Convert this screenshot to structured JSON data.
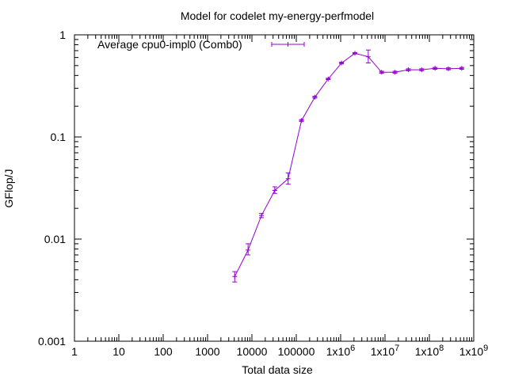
{
  "chart_data": {
    "type": "line",
    "title": "Model for codelet my-energy-perfmodel",
    "xlabel": "Total data size",
    "ylabel": "GFlop/J",
    "xscale": "log",
    "yscale": "log",
    "xlim": [
      1,
      1000000000
    ],
    "ylim": [
      0.001,
      1
    ],
    "xticks": [
      {
        "value": 1,
        "label": "1"
      },
      {
        "value": 10,
        "label": "10"
      },
      {
        "value": 100,
        "label": "100"
      },
      {
        "value": 1000,
        "label": "1000"
      },
      {
        "value": 10000,
        "label": "10000"
      },
      {
        "value": 100000,
        "label": "100000"
      },
      {
        "value": 1000000,
        "label": "1x10"
      },
      {
        "value": 10000000,
        "label": "1x10"
      },
      {
        "value": 100000000,
        "label": "1x10"
      },
      {
        "value": 1000000000,
        "label": "1x10"
      }
    ],
    "xtick_exponents": [
      "",
      "",
      "",
      "",
      "",
      "",
      "6",
      "7",
      "8",
      "9"
    ],
    "yticks": [
      {
        "value": 0.001,
        "label": "0.001"
      },
      {
        "value": 0.01,
        "label": "0.01"
      },
      {
        "value": 0.1,
        "label": "0.1"
      },
      {
        "value": 1,
        "label": "1"
      }
    ],
    "legend_position": "top-left",
    "grid": false,
    "series": [
      {
        "name": "Average cpu0-impl0 (Comb0)",
        "color": "#9400d3",
        "error_bars": true,
        "points": [
          {
            "x": 4096,
            "y": 0.0043,
            "ylo": 0.0038,
            "yhi": 0.0048
          },
          {
            "x": 8192,
            "y": 0.0078,
            "ylo": 0.007,
            "yhi": 0.009
          },
          {
            "x": 16384,
            "y": 0.017,
            "ylo": 0.0162,
            "yhi": 0.0178
          },
          {
            "x": 32768,
            "y": 0.03,
            "ylo": 0.028,
            "yhi": 0.0325
          },
          {
            "x": 65536,
            "y": 0.039,
            "ylo": 0.0345,
            "yhi": 0.0445
          },
          {
            "x": 131072,
            "y": 0.145,
            "ylo": 0.142,
            "yhi": 0.148
          },
          {
            "x": 262144,
            "y": 0.245,
            "ylo": 0.24,
            "yhi": 0.25
          },
          {
            "x": 524288,
            "y": 0.37,
            "ylo": 0.365,
            "yhi": 0.376
          },
          {
            "x": 1048576,
            "y": 0.53,
            "ylo": 0.52,
            "yhi": 0.54
          },
          {
            "x": 2097152,
            "y": 0.66,
            "ylo": 0.65,
            "yhi": 0.67
          },
          {
            "x": 4194304,
            "y": 0.61,
            "ylo": 0.53,
            "yhi": 0.71
          },
          {
            "x": 8388608,
            "y": 0.43,
            "ylo": 0.42,
            "yhi": 0.44
          },
          {
            "x": 16777216,
            "y": 0.43,
            "ylo": 0.42,
            "yhi": 0.44
          },
          {
            "x": 33554432,
            "y": 0.455,
            "ylo": 0.445,
            "yhi": 0.465
          },
          {
            "x": 67108864,
            "y": 0.455,
            "ylo": 0.445,
            "yhi": 0.465
          },
          {
            "x": 134217728,
            "y": 0.47,
            "ylo": 0.46,
            "yhi": 0.48
          },
          {
            "x": 268435456,
            "y": 0.465,
            "ylo": 0.455,
            "yhi": 0.475
          },
          {
            "x": 536870912,
            "y": 0.47,
            "ylo": 0.46,
            "yhi": 0.48
          }
        ]
      }
    ]
  }
}
